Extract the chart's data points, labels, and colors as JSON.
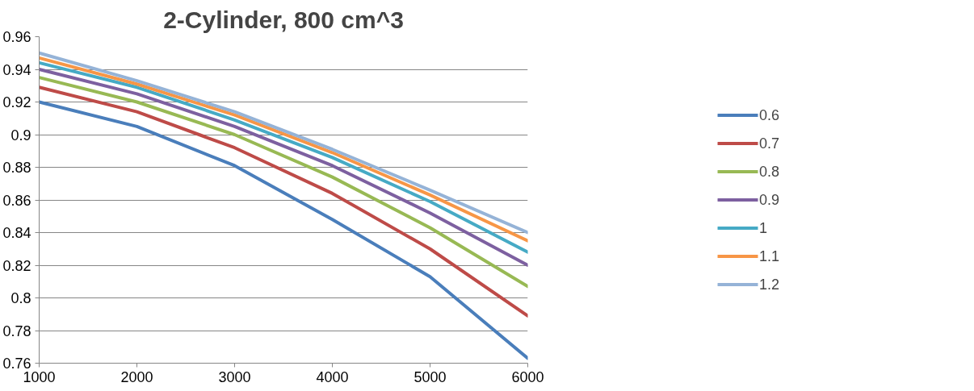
{
  "chart_data": {
    "type": "line",
    "title": "2-Cylinder, 800 cm^3",
    "x": [
      1000,
      2000,
      3000,
      4000,
      5000,
      6000
    ],
    "xlim": [
      1000,
      6000
    ],
    "xticks": [
      1000,
      2000,
      3000,
      4000,
      5000,
      6000
    ],
    "ylim": [
      0.76,
      0.96
    ],
    "yticks": [
      0.76,
      0.78,
      0.8,
      0.82,
      0.84,
      0.86,
      0.88,
      0.9,
      0.92,
      0.94,
      0.96
    ],
    "grid": "y",
    "legend": "right",
    "marker": "none",
    "line_style": "solid",
    "series": [
      {
        "name": "0.6",
        "color": "#4a7ebb",
        "values": [
          0.92,
          0.905,
          0.881,
          0.848,
          0.813,
          0.763
        ]
      },
      {
        "name": "0.7",
        "color": "#be4b48",
        "values": [
          0.929,
          0.914,
          0.892,
          0.864,
          0.83,
          0.789
        ]
      },
      {
        "name": "0.8",
        "color": "#98b954",
        "values": [
          0.935,
          0.92,
          0.9,
          0.874,
          0.843,
          0.807
        ]
      },
      {
        "name": "0.9",
        "color": "#7d60a0",
        "values": [
          0.94,
          0.925,
          0.905,
          0.881,
          0.852,
          0.82
        ]
      },
      {
        "name": "1",
        "color": "#46aac5",
        "values": [
          0.944,
          0.929,
          0.909,
          0.886,
          0.859,
          0.828
        ]
      },
      {
        "name": "1.1",
        "color": "#f79646",
        "values": [
          0.947,
          0.931,
          0.912,
          0.889,
          0.863,
          0.835
        ]
      },
      {
        "name": "1.2",
        "color": "#95b3d7",
        "values": [
          0.95,
          0.933,
          0.914,
          0.891,
          0.866,
          0.84
        ]
      }
    ]
  }
}
